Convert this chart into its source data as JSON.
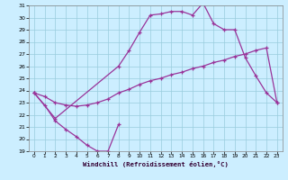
{
  "xlabel": "Windchill (Refroidissement éolien,°C)",
  "xlim": [
    -0.5,
    23.5
  ],
  "ylim": [
    19,
    31
  ],
  "xticks": [
    0,
    1,
    2,
    3,
    4,
    5,
    6,
    7,
    8,
    9,
    10,
    11,
    12,
    13,
    14,
    15,
    16,
    17,
    18,
    19,
    20,
    21,
    22,
    23
  ],
  "yticks": [
    19,
    20,
    21,
    22,
    23,
    24,
    25,
    26,
    27,
    28,
    29,
    30,
    31
  ],
  "bg_color": "#cceeff",
  "line_color": "#993399",
  "grid_color": "#99ccdd",
  "s1_x": [
    0,
    1,
    2,
    3,
    4,
    5,
    6,
    7,
    8
  ],
  "s1_y": [
    23.8,
    22.8,
    21.5,
    20.8,
    20.2,
    19.5,
    19.0,
    19.0,
    21.2
  ],
  "s2_x": [
    0,
    2,
    8,
    9,
    10,
    11,
    12,
    13,
    14,
    15,
    16,
    17,
    18,
    19,
    20,
    21,
    22,
    23
  ],
  "s2_y": [
    23.8,
    21.7,
    26.0,
    27.3,
    28.8,
    30.2,
    30.3,
    30.5,
    30.5,
    30.2,
    31.2,
    29.5,
    29.0,
    29.0,
    26.7,
    25.2,
    23.8,
    23.0
  ],
  "s3_x": [
    0,
    1,
    2,
    3,
    4,
    5,
    6,
    7,
    8,
    9,
    10,
    11,
    12,
    13,
    14,
    15,
    16,
    17,
    18,
    19,
    20,
    21,
    22,
    23
  ],
  "s3_y": [
    23.8,
    23.5,
    23.0,
    22.8,
    22.7,
    22.8,
    23.0,
    23.3,
    23.8,
    24.1,
    24.5,
    24.8,
    25.0,
    25.3,
    25.5,
    25.8,
    26.0,
    26.3,
    26.5,
    26.8,
    27.0,
    27.3,
    27.5,
    23.0
  ]
}
